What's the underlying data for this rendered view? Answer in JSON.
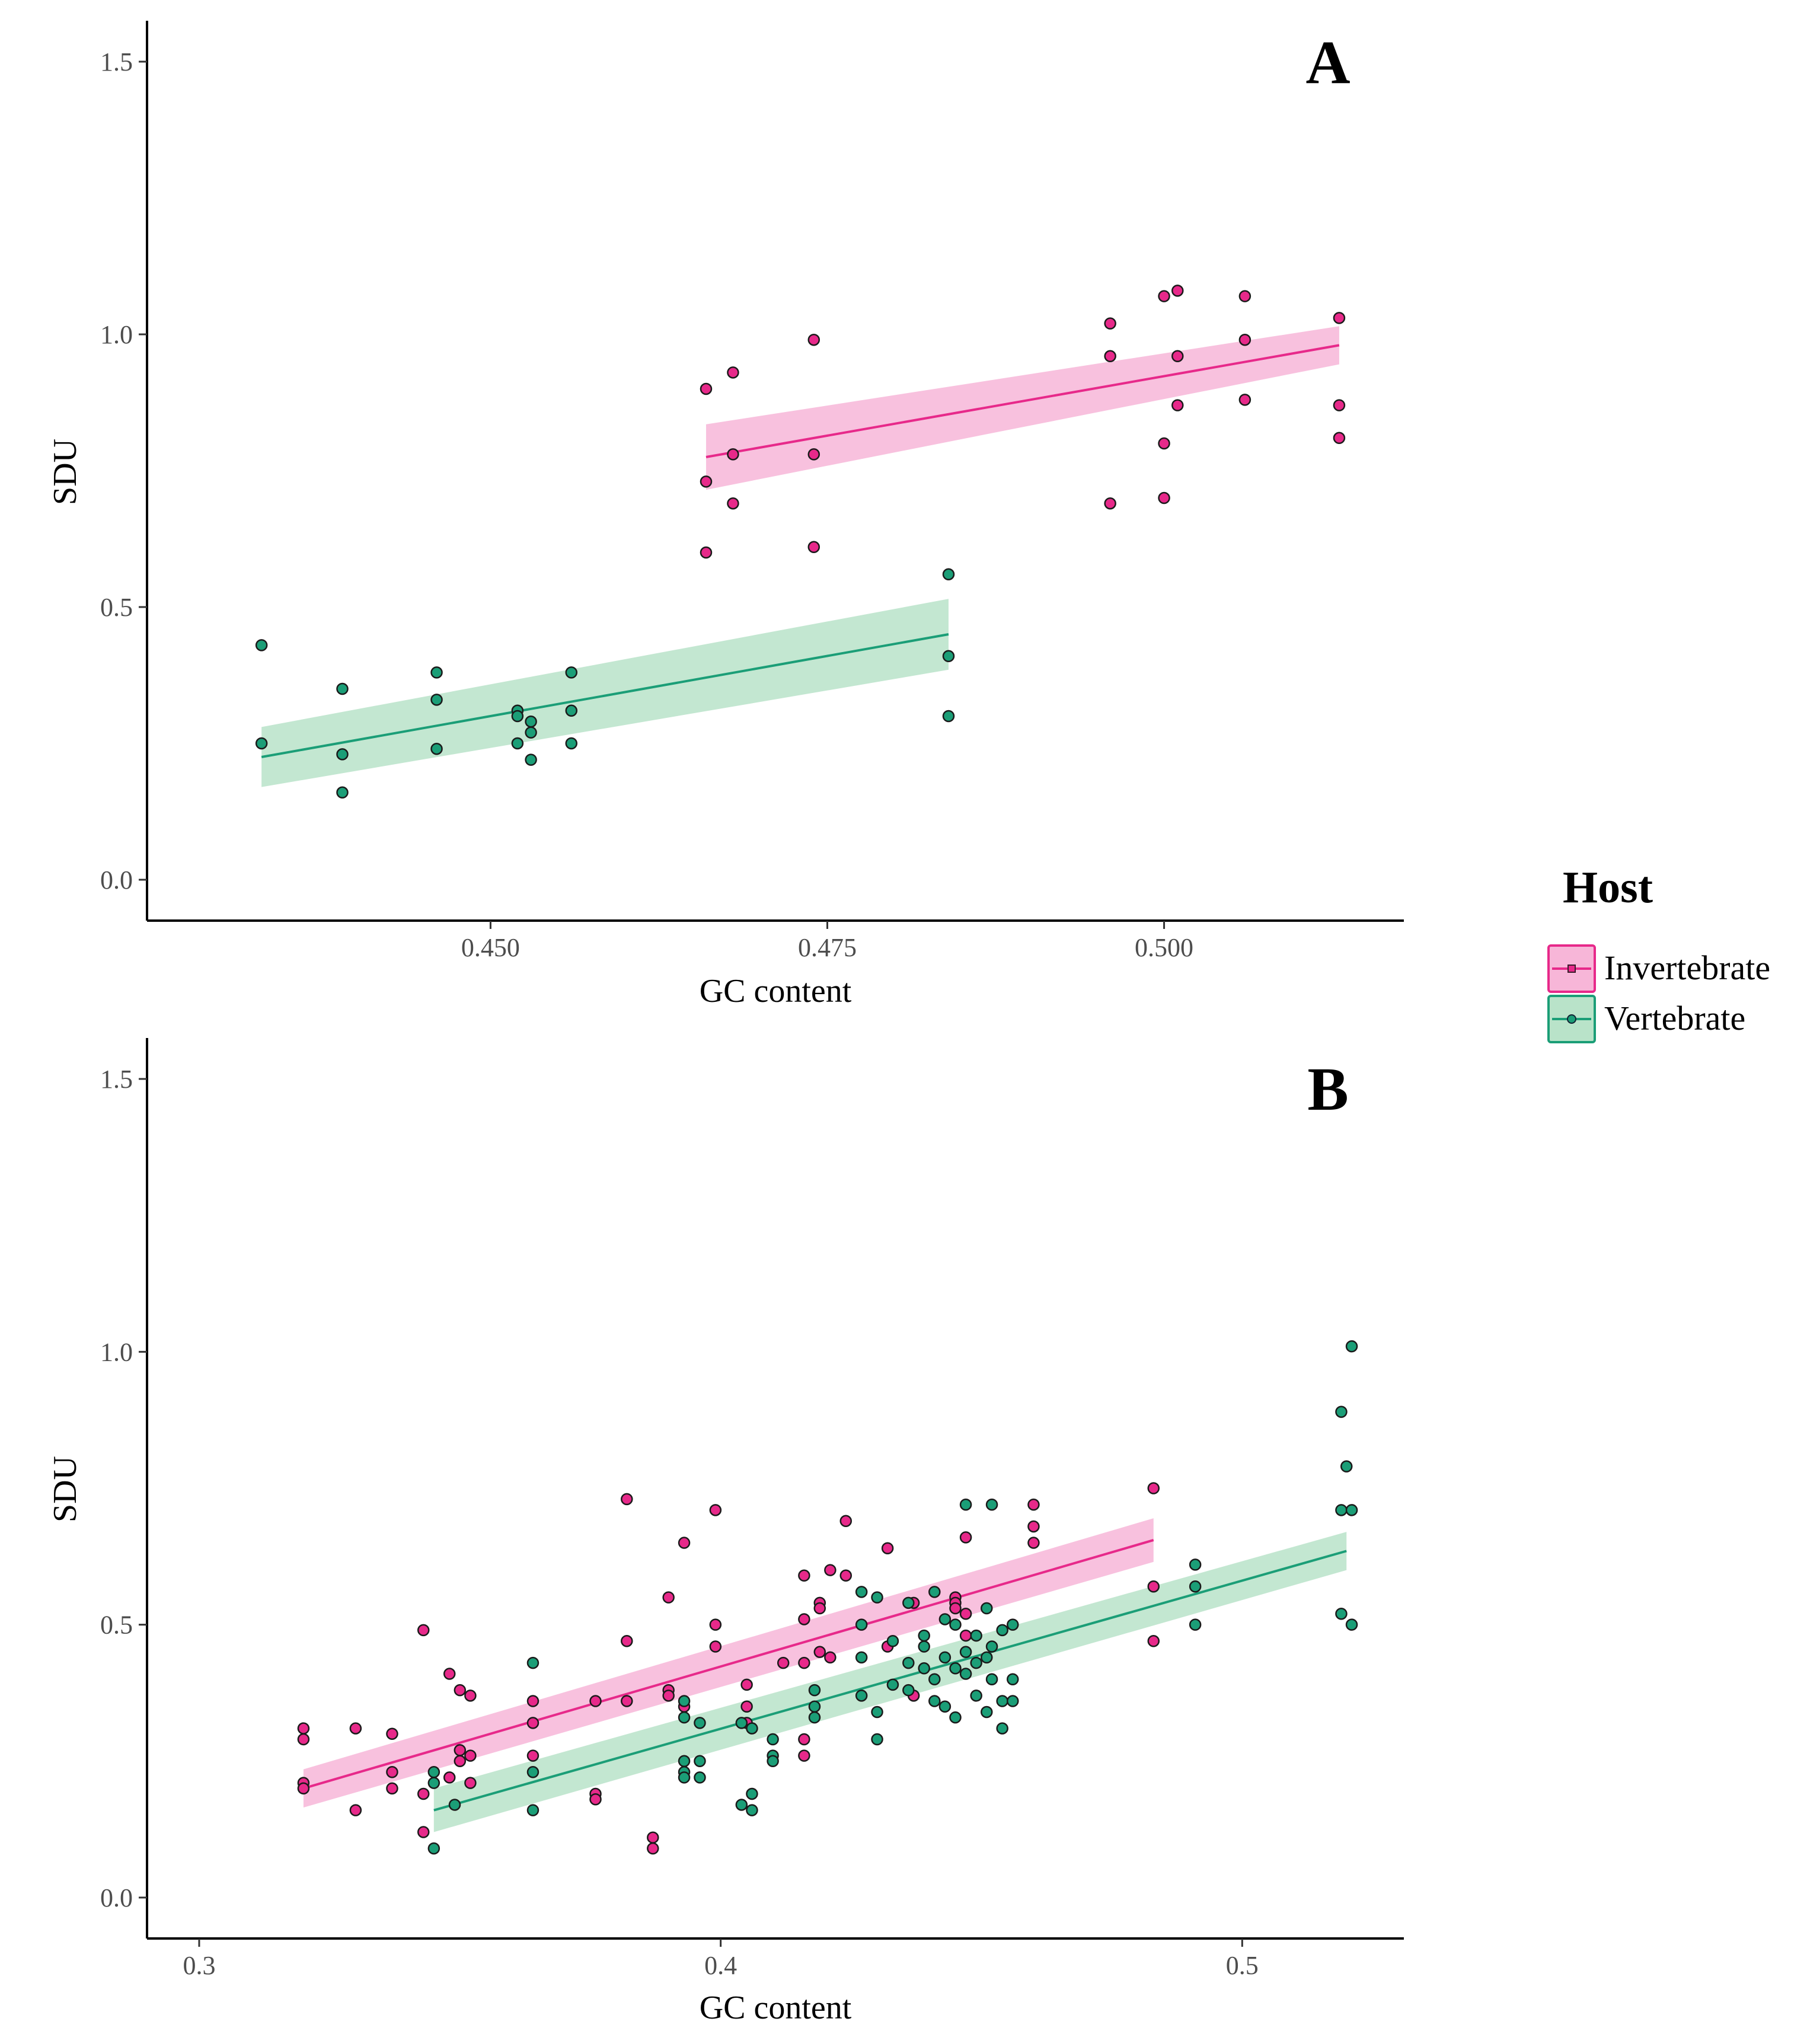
{
  "legend": {
    "title": "Host",
    "items": [
      {
        "label": "Invertebrate",
        "color": "#E7298A",
        "fill": "#F7B6D8"
      },
      {
        "label": "Vertebrate",
        "color": "#1B9E77",
        "fill": "#B9E3C9"
      }
    ]
  },
  "chart_data": [
    {
      "type": "scatter",
      "panel_label": "A",
      "xlabel": "GC content",
      "ylabel": "SDU",
      "xlim": [
        0.4245,
        0.5178
      ],
      "ylim": [
        -0.075,
        1.575
      ],
      "xticks": [
        0.45,
        0.475,
        0.5
      ],
      "xtick_labels": [
        "0.450",
        "0.475",
        "0.500"
      ],
      "yticks": [
        0.0,
        0.5,
        1.0,
        1.5
      ],
      "ytick_labels": [
        "0.0",
        "0.5",
        "1.0",
        "1.5"
      ],
      "series": [
        {
          "name": "Invertebrate",
          "points": [
            [
              0.466,
              0.9
            ],
            [
              0.466,
              0.73
            ],
            [
              0.466,
              0.6
            ],
            [
              0.468,
              0.93
            ],
            [
              0.468,
              0.78
            ],
            [
              0.468,
              0.69
            ],
            [
              0.474,
              0.99
            ],
            [
              0.474,
              0.78
            ],
            [
              0.474,
              0.61
            ],
            [
              0.496,
              1.02
            ],
            [
              0.496,
              0.96
            ],
            [
              0.496,
              0.69
            ],
            [
              0.5,
              1.07
            ],
            [
              0.5,
              0.8
            ],
            [
              0.5,
              0.7
            ],
            [
              0.501,
              1.08
            ],
            [
              0.501,
              0.96
            ],
            [
              0.501,
              0.87
            ],
            [
              0.506,
              1.07
            ],
            [
              0.506,
              0.99
            ],
            [
              0.506,
              0.88
            ],
            [
              0.513,
              1.03
            ],
            [
              0.513,
              0.87
            ],
            [
              0.513,
              0.81
            ]
          ],
          "fit": {
            "x": [
              0.466,
              0.513
            ],
            "y": [
              0.775,
              0.98
            ],
            "ci_lower": [
              0.715,
              0.945
            ],
            "ci_upper": [
              0.835,
              1.015
            ]
          }
        },
        {
          "name": "Vertebrate",
          "points": [
            [
              0.433,
              0.43
            ],
            [
              0.433,
              0.25
            ],
            [
              0.439,
              0.35
            ],
            [
              0.439,
              0.23
            ],
            [
              0.439,
              0.16
            ],
            [
              0.446,
              0.38
            ],
            [
              0.446,
              0.33
            ],
            [
              0.446,
              0.24
            ],
            [
              0.452,
              0.31
            ],
            [
              0.452,
              0.3
            ],
            [
              0.452,
              0.25
            ],
            [
              0.453,
              0.29
            ],
            [
              0.453,
              0.27
            ],
            [
              0.453,
              0.22
            ],
            [
              0.456,
              0.38
            ],
            [
              0.456,
              0.31
            ],
            [
              0.456,
              0.25
            ],
            [
              0.484,
              0.56
            ],
            [
              0.484,
              0.41
            ],
            [
              0.484,
              0.3
            ]
          ],
          "fit": {
            "x": [
              0.433,
              0.484
            ],
            "y": [
              0.225,
              0.45
            ],
            "ci_lower": [
              0.17,
              0.385
            ],
            "ci_upper": [
              0.28,
              0.515
            ]
          }
        }
      ]
    },
    {
      "type": "scatter",
      "panel_label": "B",
      "xlabel": "GC content",
      "ylabel": "SDU",
      "xlim": [
        0.29,
        0.531
      ],
      "ylim": [
        -0.075,
        1.575
      ],
      "xticks": [
        0.3,
        0.4,
        0.5
      ],
      "xtick_labels": [
        "0.3",
        "0.4",
        "0.5"
      ],
      "yticks": [
        0.0,
        0.5,
        1.0,
        1.5
      ],
      "ytick_labels": [
        "0.0",
        "0.5",
        "1.0",
        "1.5"
      ],
      "series": [
        {
          "name": "Invertebrate",
          "points": [
            [
              0.32,
              0.31
            ],
            [
              0.32,
              0.29
            ],
            [
              0.32,
              0.21
            ],
            [
              0.32,
              0.2
            ],
            [
              0.33,
              0.31
            ],
            [
              0.33,
              0.16
            ],
            [
              0.337,
              0.3
            ],
            [
              0.337,
              0.23
            ],
            [
              0.337,
              0.2
            ],
            [
              0.343,
              0.49
            ],
            [
              0.343,
              0.19
            ],
            [
              0.343,
              0.12
            ],
            [
              0.348,
              0.41
            ],
            [
              0.348,
              0.22
            ],
            [
              0.35,
              0.38
            ],
            [
              0.35,
              0.27
            ],
            [
              0.35,
              0.25
            ],
            [
              0.352,
              0.37
            ],
            [
              0.352,
              0.26
            ],
            [
              0.352,
              0.21
            ],
            [
              0.364,
              0.36
            ],
            [
              0.364,
              0.32
            ],
            [
              0.364,
              0.26
            ],
            [
              0.376,
              0.36
            ],
            [
              0.376,
              0.19
            ],
            [
              0.376,
              0.18
            ],
            [
              0.382,
              0.73
            ],
            [
              0.382,
              0.47
            ],
            [
              0.382,
              0.36
            ],
            [
              0.387,
              0.11
            ],
            [
              0.387,
              0.09
            ],
            [
              0.39,
              0.55
            ],
            [
              0.39,
              0.38
            ],
            [
              0.39,
              0.37
            ],
            [
              0.393,
              0.65
            ],
            [
              0.393,
              0.35
            ],
            [
              0.399,
              0.71
            ],
            [
              0.399,
              0.5
            ],
            [
              0.399,
              0.46
            ],
            [
              0.405,
              0.39
            ],
            [
              0.405,
              0.35
            ],
            [
              0.405,
              0.32
            ],
            [
              0.412,
              0.43
            ],
            [
              0.416,
              0.59
            ],
            [
              0.416,
              0.51
            ],
            [
              0.416,
              0.43
            ],
            [
              0.416,
              0.29
            ],
            [
              0.416,
              0.26
            ],
            [
              0.419,
              0.54
            ],
            [
              0.419,
              0.53
            ],
            [
              0.419,
              0.45
            ],
            [
              0.421,
              0.6
            ],
            [
              0.421,
              0.44
            ],
            [
              0.424,
              0.69
            ],
            [
              0.424,
              0.59
            ],
            [
              0.432,
              0.64
            ],
            [
              0.432,
              0.46
            ],
            [
              0.437,
              0.54
            ],
            [
              0.437,
              0.37
            ],
            [
              0.445,
              0.55
            ],
            [
              0.445,
              0.54
            ],
            [
              0.445,
              0.53
            ],
            [
              0.447,
              0.66
            ],
            [
              0.447,
              0.52
            ],
            [
              0.447,
              0.48
            ],
            [
              0.46,
              0.72
            ],
            [
              0.46,
              0.68
            ],
            [
              0.46,
              0.65
            ],
            [
              0.483,
              0.75
            ],
            [
              0.483,
              0.57
            ],
            [
              0.483,
              0.47
            ]
          ],
          "fit": {
            "x": [
              0.32,
              0.483
            ],
            "y": [
              0.2,
              0.655
            ],
            "ci_lower": [
              0.165,
              0.615
            ],
            "ci_upper": [
              0.235,
              0.695
            ]
          }
        },
        {
          "name": "Vertebrate",
          "points": [
            [
              0.345,
              0.23
            ],
            [
              0.345,
              0.21
            ],
            [
              0.345,
              0.09
            ],
            [
              0.349,
              0.17
            ],
            [
              0.364,
              0.43
            ],
            [
              0.364,
              0.23
            ],
            [
              0.364,
              0.16
            ],
            [
              0.393,
              0.36
            ],
            [
              0.393,
              0.33
            ],
            [
              0.393,
              0.25
            ],
            [
              0.393,
              0.23
            ],
            [
              0.393,
              0.22
            ],
            [
              0.396,
              0.32
            ],
            [
              0.396,
              0.25
            ],
            [
              0.396,
              0.22
            ],
            [
              0.404,
              0.32
            ],
            [
              0.404,
              0.17
            ],
            [
              0.406,
              0.31
            ],
            [
              0.406,
              0.19
            ],
            [
              0.406,
              0.16
            ],
            [
              0.41,
              0.29
            ],
            [
              0.41,
              0.26
            ],
            [
              0.41,
              0.25
            ],
            [
              0.418,
              0.38
            ],
            [
              0.418,
              0.35
            ],
            [
              0.418,
              0.33
            ],
            [
              0.427,
              0.56
            ],
            [
              0.427,
              0.5
            ],
            [
              0.427,
              0.44
            ],
            [
              0.427,
              0.37
            ],
            [
              0.43,
              0.55
            ],
            [
              0.43,
              0.34
            ],
            [
              0.43,
              0.29
            ],
            [
              0.433,
              0.47
            ],
            [
              0.433,
              0.39
            ],
            [
              0.436,
              0.54
            ],
            [
              0.436,
              0.43
            ],
            [
              0.436,
              0.38
            ],
            [
              0.439,
              0.48
            ],
            [
              0.439,
              0.46
            ],
            [
              0.439,
              0.42
            ],
            [
              0.441,
              0.56
            ],
            [
              0.441,
              0.4
            ],
            [
              0.441,
              0.36
            ],
            [
              0.443,
              0.51
            ],
            [
              0.443,
              0.44
            ],
            [
              0.443,
              0.35
            ],
            [
              0.445,
              0.5
            ],
            [
              0.445,
              0.42
            ],
            [
              0.445,
              0.33
            ],
            [
              0.447,
              0.72
            ],
            [
              0.447,
              0.45
            ],
            [
              0.447,
              0.41
            ],
            [
              0.449,
              0.48
            ],
            [
              0.449,
              0.43
            ],
            [
              0.449,
              0.37
            ],
            [
              0.451,
              0.53
            ],
            [
              0.451,
              0.44
            ],
            [
              0.451,
              0.34
            ],
            [
              0.452,
              0.72
            ],
            [
              0.452,
              0.46
            ],
            [
              0.452,
              0.4
            ],
            [
              0.454,
              0.49
            ],
            [
              0.454,
              0.36
            ],
            [
              0.454,
              0.31
            ],
            [
              0.456,
              0.5
            ],
            [
              0.456,
              0.4
            ],
            [
              0.456,
              0.36
            ],
            [
              0.491,
              0.61
            ],
            [
              0.491,
              0.57
            ],
            [
              0.491,
              0.5
            ],
            [
              0.521,
              1.01
            ],
            [
              0.519,
              0.89
            ],
            [
              0.52,
              0.79
            ],
            [
              0.519,
              0.71
            ],
            [
              0.521,
              0.71
            ],
            [
              0.519,
              0.52
            ],
            [
              0.521,
              0.5
            ]
          ],
          "fit": {
            "x": [
              0.345,
              0.52
            ],
            "y": [
              0.16,
              0.635
            ],
            "ci_lower": [
              0.12,
              0.6
            ],
            "ci_upper": [
              0.2,
              0.67
            ]
          }
        }
      ]
    }
  ]
}
